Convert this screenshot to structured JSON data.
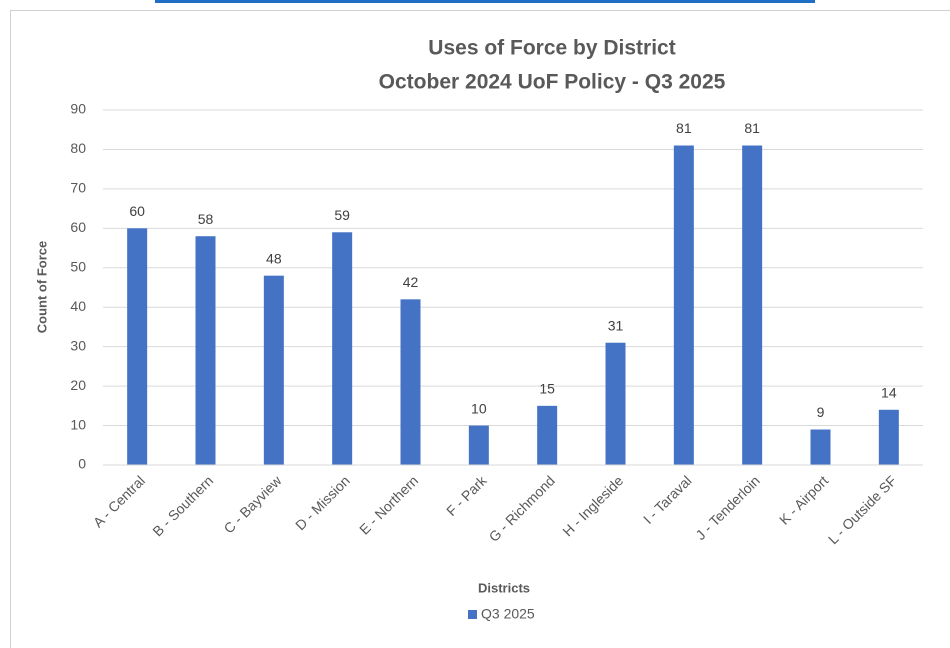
{
  "chart_data": {
    "type": "bar",
    "title": "Uses of Force by District",
    "subtitle": "October 2024 UoF Policy - Q3 2025",
    "x_label": "Districts",
    "y_label": "Count of Force",
    "categories": [
      "A - Central",
      "B - Southern",
      "C - Bayview",
      "D - Mission",
      "E - Northern",
      "F - Park",
      "G - Richmond",
      "H - Ingleside",
      "I - Taraval",
      "J - Tenderloin",
      "K - Airport",
      "L - Outside SF"
    ],
    "series": [
      {
        "name": "Q3 2025",
        "color": "#4472c4",
        "values": [
          60,
          58,
          48,
          59,
          42,
          10,
          15,
          31,
          81,
          81,
          9,
          14
        ]
      }
    ],
    "ylim": [
      0,
      90
    ],
    "yticks": [
      0,
      10,
      20,
      30,
      40,
      50,
      60,
      70,
      80,
      90
    ],
    "grid": true,
    "legend": "bottom"
  }
}
